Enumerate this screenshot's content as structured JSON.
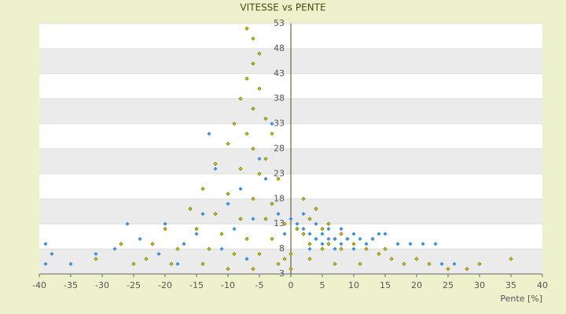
{
  "chart_data": {
    "type": "scatter",
    "title": "VITESSE vs PENTE",
    "x_label": "Pente [%]",
    "xlim": [
      -40,
      40
    ],
    "xticks": [
      -40,
      -35,
      -30,
      -25,
      -20,
      -15,
      -10,
      -5,
      0,
      5,
      10,
      15,
      20,
      25,
      30,
      35,
      40
    ],
    "ylim": [
      3,
      53
    ],
    "yticks": [
      3,
      8,
      13,
      18,
      23,
      28,
      33,
      38,
      43,
      48,
      53
    ],
    "grid": true,
    "series": [
      {
        "color": "#6b6b00",
        "x": [
          -7,
          -6,
          -5,
          -6,
          -7,
          -5,
          -8,
          -6,
          -4,
          -9,
          -7,
          -3,
          -10,
          -6,
          -4,
          -12,
          -8,
          -5,
          -2,
          -14,
          -10,
          -6,
          -3,
          -16,
          -12,
          -8,
          -4,
          -1,
          -20,
          -15,
          -11,
          -7,
          -3,
          -27,
          -22,
          -18,
          -13,
          -9,
          -5,
          -1,
          -25,
          -19,
          -14,
          -10,
          -6,
          -2,
          -31,
          -23,
          2,
          4,
          3,
          6,
          1,
          5,
          8,
          2,
          4,
          7,
          9,
          3,
          6,
          10,
          12,
          5,
          8,
          14,
          16,
          18,
          20,
          22,
          25,
          28,
          30,
          35,
          11,
          7,
          3,
          0,
          0,
          13,
          15
        ],
        "values": [
          52,
          50,
          47,
          45,
          42,
          40,
          38,
          36,
          34,
          33,
          31,
          31,
          29,
          28,
          26,
          25,
          24,
          23,
          22,
          20,
          19,
          18,
          17,
          16,
          15,
          14,
          14,
          13,
          12,
          12,
          11,
          10,
          10,
          9,
          9,
          8,
          8,
          7,
          7,
          6,
          5,
          5,
          5,
          4,
          4,
          5,
          6,
          6,
          18,
          16,
          14,
          13,
          12,
          12,
          11,
          11,
          10,
          10,
          10,
          9,
          9,
          9,
          8,
          8,
          8,
          7,
          6,
          5,
          6,
          5,
          4,
          4,
          5,
          6,
          5,
          5,
          6,
          4,
          7,
          10,
          8
        ]
      },
      {
        "color": "#3a8fd8",
        "x": [
          -39,
          -38,
          -35,
          -31,
          -26,
          -24,
          -20,
          -17,
          -15,
          -13,
          -12,
          -10,
          -8,
          -6,
          -5,
          -4,
          -3,
          -2,
          -9,
          -11,
          -7,
          -21,
          -18,
          1,
          2,
          3,
          4,
          5,
          6,
          7,
          8,
          9,
          10,
          11,
          12,
          13,
          15,
          17,
          21,
          23,
          2,
          4,
          6,
          8,
          0,
          -1,
          -14,
          -39,
          -28,
          5,
          3,
          7,
          10,
          14,
          19,
          24,
          26
        ],
        "values": [
          9,
          7,
          5,
          7,
          13,
          10,
          13,
          9,
          11,
          31,
          24,
          17,
          20,
          14,
          26,
          22,
          33,
          15,
          12,
          8,
          6,
          7,
          5,
          13,
          12,
          11,
          10,
          11,
          10,
          10,
          9,
          10,
          11,
          10,
          9,
          10,
          11,
          9,
          9,
          9,
          15,
          13,
          12,
          12,
          14,
          11,
          15,
          5,
          8,
          9,
          8,
          8,
          8,
          11,
          9,
          5,
          5
        ]
      }
    ]
  }
}
